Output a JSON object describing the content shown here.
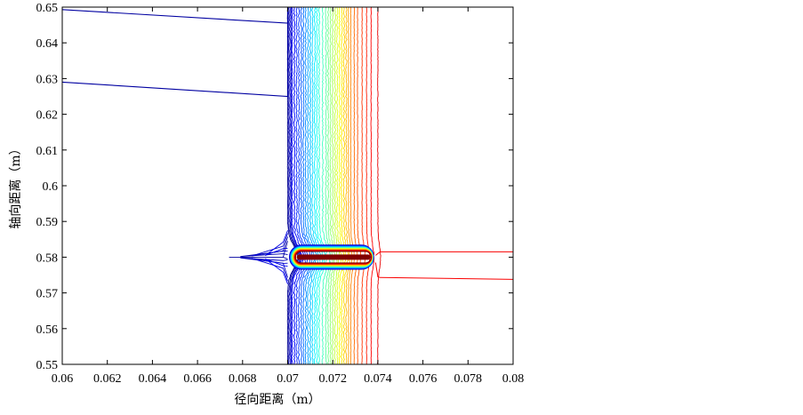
{
  "chart_data": {
    "type": "contour",
    "xlabel": "径向距离（m）",
    "ylabel": "轴向距离（m）",
    "xlim": [
      0.06,
      0.08
    ],
    "ylim": [
      0.55,
      0.65
    ],
    "xticks": [
      "0.06",
      "0.062",
      "0.064",
      "0.066",
      "0.068",
      "0.07",
      "0.072",
      "0.074",
      "0.076",
      "0.078",
      "0.08"
    ],
    "yticks": [
      "0.55",
      "0.56",
      "0.57",
      "0.58",
      "0.59",
      "0.6",
      "0.61",
      "0.62",
      "0.63",
      "0.64",
      "0.65"
    ],
    "grid": false,
    "colormap": [
      "#00008f",
      "#0000ff",
      "#0080ff",
      "#00ffff",
      "#80ff80",
      "#ffff00",
      "#ff8000",
      "#ff0000",
      "#800000"
    ],
    "vertical_contours_x": [
      0.07,
      0.07005,
      0.0701,
      0.07015,
      0.0702,
      0.0703,
      0.0704,
      0.0705,
      0.0706,
      0.0707,
      0.0708,
      0.0709,
      0.071,
      0.0711,
      0.0712,
      0.0713,
      0.0714,
      0.07155,
      0.0717,
      0.0718,
      0.0719,
      0.072,
      0.0721,
      0.0722,
      0.0723,
      0.0724,
      0.0725,
      0.0726,
      0.0727,
      0.0728,
      0.07295,
      0.0731,
      0.0733,
      0.0735,
      0.0737,
      0.074
    ],
    "source_x_range": [
      0.0704,
      0.0736
    ],
    "source_y_range": [
      0.5785,
      0.5815
    ],
    "source_center_y": 0.58,
    "left_upper_contours": [
      {
        "x": [
          0.06,
          0.07
        ],
        "y": [
          0.6493,
          0.6455
        ]
      },
      {
        "x": [
          0.06,
          0.07
        ],
        "y": [
          0.629,
          0.625
        ]
      }
    ],
    "right_contours": [
      {
        "x": [
          0.0741,
          0.08
        ],
        "y": [
          0.5815,
          0.5815
        ]
      },
      {
        "x": [
          0.0741,
          0.08
        ],
        "y": [
          0.5743,
          0.5738
        ]
      }
    ],
    "left_spike_tip": [
      0.0674,
      0.58
    ]
  }
}
